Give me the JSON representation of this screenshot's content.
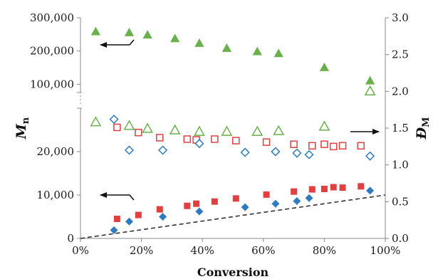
{
  "chart_data": {
    "type": "scatter",
    "title": "",
    "xlabel": "Conversion",
    "ylabel_left": {
      "main": "M",
      "sub": "n"
    },
    "ylabel_right": {
      "main": "Đ",
      "sub": "M"
    },
    "x_ticks": [
      "0%",
      "20%",
      "40%",
      "60%",
      "80%",
      "100%"
    ],
    "x_range": [
      0,
      100
    ],
    "y_left_ticks_upper": [
      "300,000",
      "200,000",
      "100,000"
    ],
    "y_left_ticks_lower": [
      "20,000",
      "10,000",
      "0"
    ],
    "y_left_range_upper": [
      75000,
      300000
    ],
    "y_left_range_lower": [
      0,
      30000
    ],
    "y_left_broken": true,
    "y_right_ticks": [
      "0.0",
      "0.5",
      "1.0",
      "1.5",
      "2.0",
      "2.5",
      "3.0"
    ],
    "y_right_range": [
      0,
      3.0
    ],
    "grid": false,
    "colors": {
      "green": "#6ab04c",
      "red": "#e04040",
      "blue": "#2e7bbf",
      "dash": "#333333"
    },
    "series": [
      {
        "marker": "filled-triangle",
        "color": "green",
        "axis": "left-upper",
        "x": [
          5,
          16,
          22,
          31,
          39,
          48,
          58,
          65,
          80,
          95
        ],
        "y": [
          258000,
          255000,
          248000,
          237000,
          223000,
          208000,
          198000,
          192000,
          150000,
          110000
        ]
      },
      {
        "marker": "filled-square",
        "color": "red",
        "axis": "left-lower",
        "x": [
          12,
          19,
          26,
          35,
          38,
          44,
          51,
          61,
          70,
          76,
          80,
          83,
          86,
          92
        ],
        "y": [
          4500,
          5400,
          6700,
          7500,
          8000,
          8500,
          9200,
          10100,
          10800,
          11300,
          11400,
          11800,
          11700,
          12000
        ]
      },
      {
        "marker": "filled-diamond",
        "color": "blue",
        "axis": "left-lower",
        "x": [
          11,
          16,
          27,
          39,
          54,
          64,
          71,
          75,
          95
        ],
        "y": [
          1900,
          3900,
          5000,
          6200,
          7200,
          8000,
          8600,
          9300,
          11000
        ]
      },
      {
        "marker": "open-triangle",
        "color": "green",
        "axis": "right",
        "x": [
          5,
          16,
          22,
          31,
          39,
          48,
          58,
          65,
          80,
          95
        ],
        "y": [
          1.58,
          1.53,
          1.49,
          1.47,
          1.45,
          1.45,
          1.45,
          1.46,
          1.52,
          2.0
        ]
      },
      {
        "marker": "open-square",
        "color": "red",
        "axis": "right",
        "x": [
          12,
          19,
          26,
          35,
          38,
          44,
          51,
          61,
          70,
          76,
          80,
          83,
          86,
          92
        ],
        "y": [
          1.51,
          1.44,
          1.37,
          1.35,
          1.34,
          1.35,
          1.33,
          1.31,
          1.28,
          1.26,
          1.28,
          1.25,
          1.26,
          1.26
        ]
      },
      {
        "marker": "open-diamond",
        "color": "blue",
        "axis": "right",
        "x": [
          11,
          16,
          27,
          39,
          54,
          64,
          71,
          75,
          95
        ],
        "y": [
          1.62,
          1.2,
          1.2,
          1.29,
          1.17,
          1.18,
          1.16,
          1.14,
          1.12
        ]
      }
    ],
    "theory_line": {
      "style": "dashed",
      "color": "dash",
      "axis": "left-lower",
      "x": [
        0,
        100
      ],
      "y": [
        0,
        10000
      ]
    },
    "annotations": [
      {
        "type": "arrow",
        "direction": "left",
        "near": "filled triangles"
      },
      {
        "type": "arrow",
        "direction": "right",
        "near": "open symbols"
      },
      {
        "type": "arrow",
        "direction": "left",
        "near": "filled squares"
      }
    ]
  }
}
